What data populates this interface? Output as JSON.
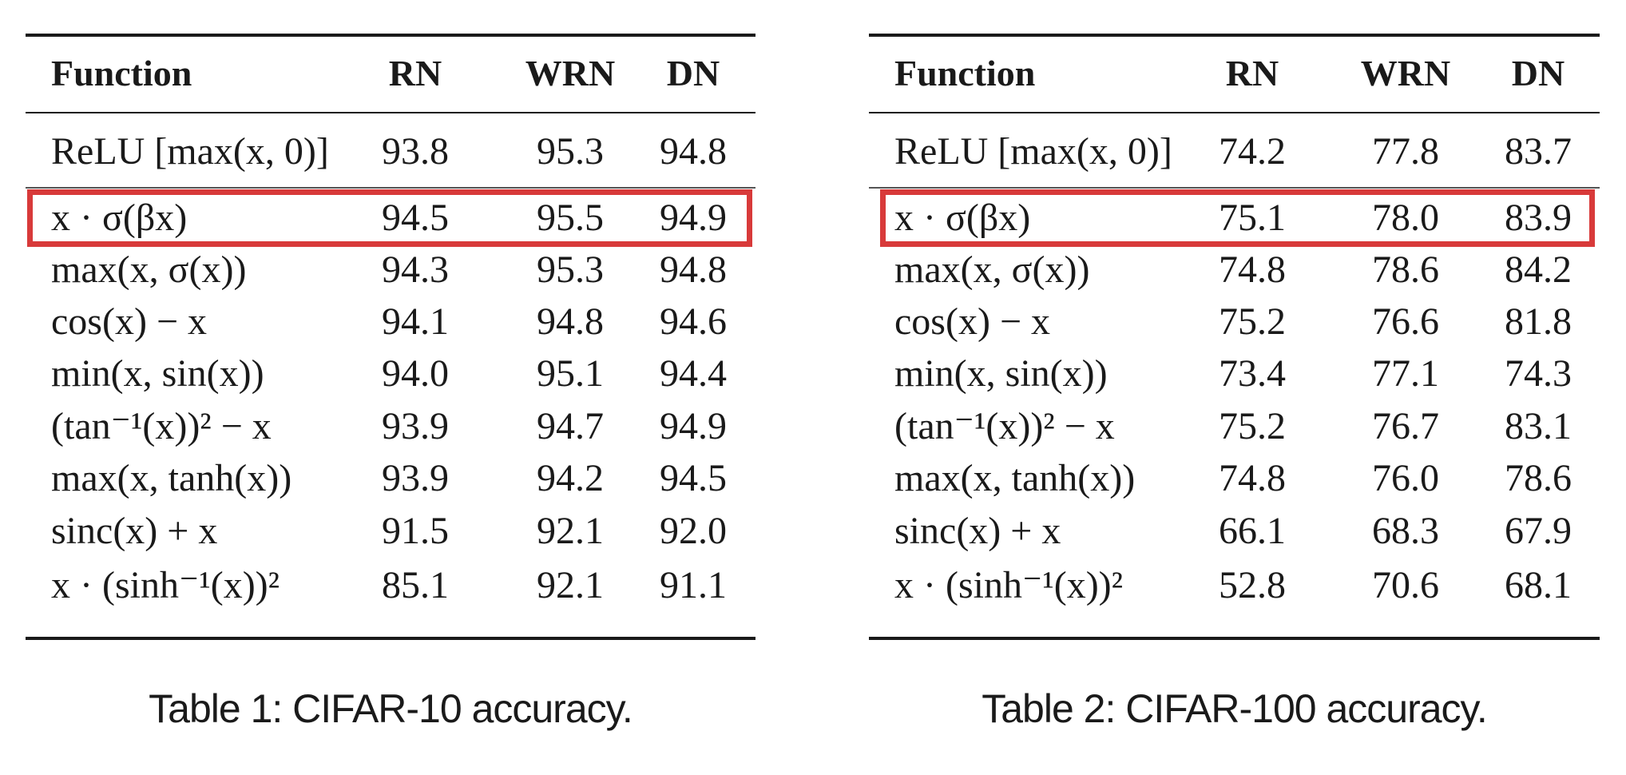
{
  "tables": [
    {
      "caption": "Table 1: CIFAR-10 accuracy.",
      "headers": [
        "Function",
        "RN",
        "WRN",
        "DN"
      ],
      "rows": [
        {
          "function": "ReLU [max(x, 0)]",
          "values": [
            "93.8",
            "95.3",
            "94.8"
          ]
        },
        {
          "function": "x · σ(βx)",
          "values": [
            "94.5",
            "95.5",
            "94.9"
          ]
        },
        {
          "function": "max(x, σ(x))",
          "values": [
            "94.3",
            "95.3",
            "94.8"
          ]
        },
        {
          "function": "cos(x) − x",
          "values": [
            "94.1",
            "94.8",
            "94.6"
          ]
        },
        {
          "function": "min(x, sin(x))",
          "values": [
            "94.0",
            "95.1",
            "94.4"
          ]
        },
        {
          "function": "(tan⁻¹(x))² − x",
          "values": [
            "93.9",
            "94.7",
            "94.9"
          ]
        },
        {
          "function": "max(x, tanh(x))",
          "values": [
            "93.9",
            "94.2",
            "94.5"
          ]
        },
        {
          "function": "sinc(x) + x",
          "values": [
            "91.5",
            "92.1",
            "92.0"
          ]
        },
        {
          "function": "x · (sinh⁻¹(x))²",
          "values": [
            "85.1",
            "92.1",
            "91.1"
          ]
        }
      ],
      "highlighted_row": 1
    },
    {
      "caption": "Table 2: CIFAR-100 accuracy.",
      "headers": [
        "Function",
        "RN",
        "WRN",
        "DN"
      ],
      "rows": [
        {
          "function": "ReLU [max(x, 0)]",
          "values": [
            "74.2",
            "77.8",
            "83.7"
          ]
        },
        {
          "function": "x · σ(βx)",
          "values": [
            "75.1",
            "78.0",
            "83.9"
          ]
        },
        {
          "function": "max(x, σ(x))",
          "values": [
            "74.8",
            "78.6",
            "84.2"
          ]
        },
        {
          "function": "cos(x) − x",
          "values": [
            "75.2",
            "76.6",
            "81.8"
          ]
        },
        {
          "function": "min(x, sin(x))",
          "values": [
            "73.4",
            "77.1",
            "74.3"
          ]
        },
        {
          "function": "(tan⁻¹(x))² − x",
          "values": [
            "75.2",
            "76.7",
            "83.1"
          ]
        },
        {
          "function": "max(x, tanh(x))",
          "values": [
            "74.8",
            "76.0",
            "78.6"
          ]
        },
        {
          "function": "sinc(x) + x",
          "values": [
            "66.1",
            "68.3",
            "67.9"
          ]
        },
        {
          "function": "x · (sinh⁻¹(x))²",
          "values": [
            "52.8",
            "70.6",
            "68.1"
          ]
        }
      ],
      "highlighted_row": 1
    }
  ],
  "colors": {
    "highlight": "#d83a3a",
    "text": "#1a1a1a"
  }
}
